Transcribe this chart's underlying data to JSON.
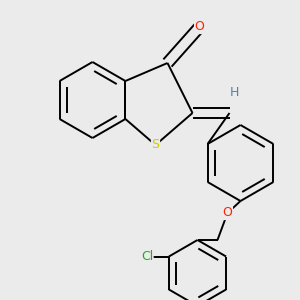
{
  "background_color": "#ebebeb",
  "bond_color": "#000000",
  "atom_colors": {
    "O": "#ff2200",
    "S": "#cccc00",
    "Cl": "#22aa22",
    "H": "#4488aa"
  },
  "lw": 1.4,
  "off": 0.07,
  "figsize": [
    3.0,
    3.0
  ],
  "dpi": 100
}
